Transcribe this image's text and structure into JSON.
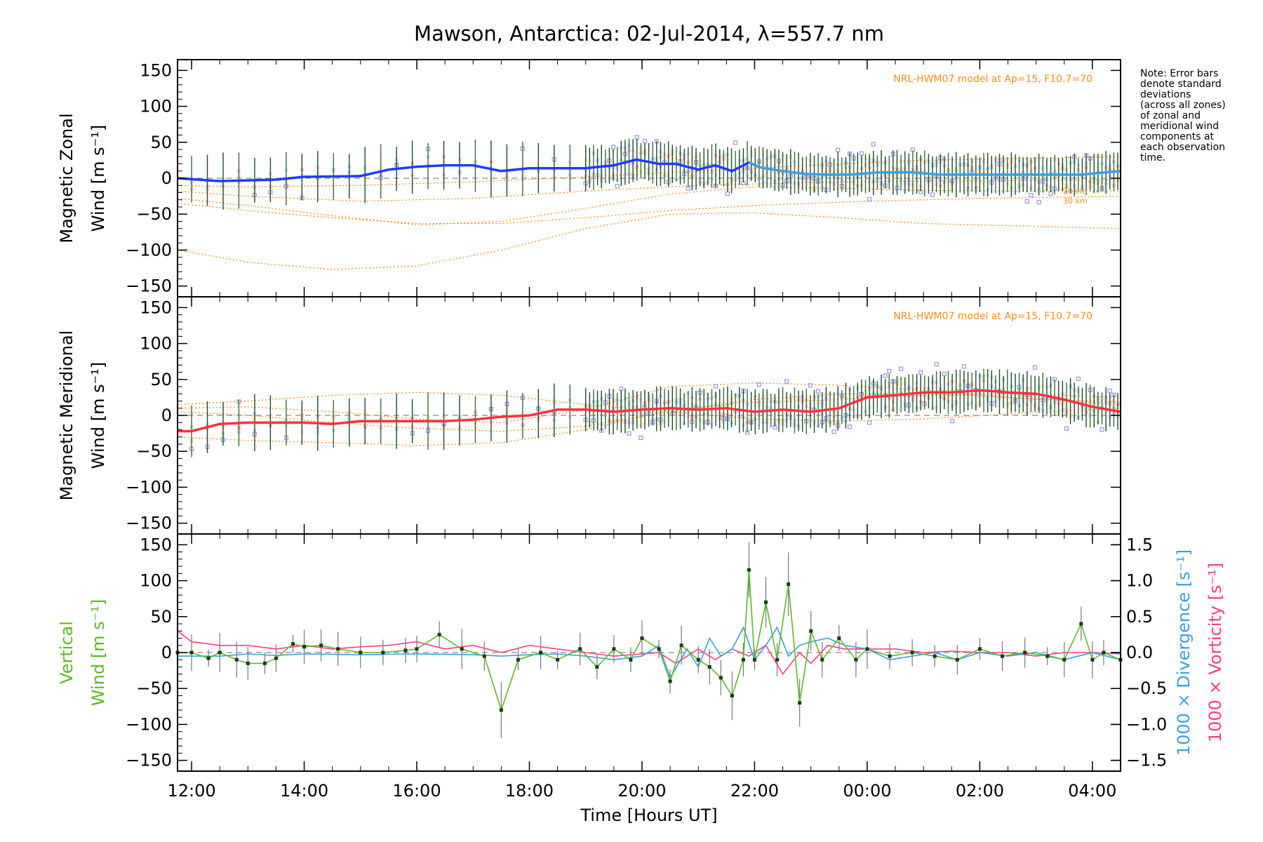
{
  "chart_data": {
    "type": "line",
    "title": "Mawson, Antarctica: 02-Jul-2014, λ=557.7 nm",
    "xlabel": "Time [Hours UT]",
    "x_range_hours_ut": [
      11.75,
      28.5
    ],
    "x_tick_hours": [
      12,
      14,
      16,
      18,
      20,
      22,
      24,
      26,
      28
    ],
    "x_tick_labels": [
      "12:00",
      "14:00",
      "16:00",
      "18:00",
      "20:00",
      "22:00",
      "00:00",
      "02:00",
      "04:00"
    ],
    "note": [
      "Note: Error bars",
      "denote standard",
      "deviations",
      "(across all zones)",
      "of zonal and",
      "meridional wind",
      "components at",
      "each observation",
      "time."
    ],
    "colors": {
      "zonal": "#1f3cff",
      "zonal_light": "#3aa0e0",
      "meridional": "#ff3040",
      "vertical": "#5fb82a",
      "divergence": "#3aa0d8",
      "vorticity": "#ff3c88",
      "model": "#ff8c1a",
      "scatter": "#9a94e0",
      "error_bar": "#1a4a2a"
    },
    "panels": [
      {
        "id": "zonal",
        "ylabel_lines": [
          "Magnetic Zonal",
          "Wind [m s⁻¹]"
        ],
        "ylim": [
          -165,
          165
        ],
        "y_ticks": [
          150,
          100,
          50,
          0,
          -50,
          -100,
          -150
        ],
        "y_tick_labels": [
          "150",
          "100",
          "50",
          "0",
          "−50",
          "−100",
          "−150"
        ],
        "model_label": "NRL-HWM07 model at Ap=15, F10.7=70",
        "model_small_labels": [
          "20 km",
          "30 km"
        ],
        "series": [
          {
            "name": "Zonal wind",
            "x": [
              11.75,
              12.5,
              13.0,
              13.5,
              14.0,
              15.0,
              15.5,
              16.0,
              16.5,
              17.0,
              17.5,
              18.0,
              18.5,
              19.0,
              19.5,
              19.9,
              20.3,
              20.6,
              21.0,
              21.3,
              21.6,
              21.9,
              22.1,
              22.5,
              22.9,
              23.3,
              23.7,
              24.2,
              24.8,
              25.3,
              26.0,
              26.6,
              27.2,
              27.8,
              28.5
            ],
            "y": [
              0,
              -4,
              -3,
              -2,
              2,
              3,
              12,
              16,
              18,
              18,
              10,
              14,
              14,
              14,
              18,
              26,
              20,
              20,
              12,
              18,
              10,
              22,
              15,
              10,
              6,
              5,
              5,
              8,
              8,
              5,
              5,
              5,
              5,
              5,
              10
            ]
          }
        ],
        "model_curves": [
          {
            "x": [
              11.75,
              13,
              14.5,
              16,
              17.5,
              19,
              20.5,
              22,
              23,
              24,
              26,
              28.5
            ],
            "y": [
              -35,
              -45,
              -55,
              -63,
              -63,
              -55,
              -45,
              -38,
              -35,
              -32,
              -28,
              -25
            ]
          },
          {
            "x": [
              11.75,
              13,
              14.5,
              16,
              17.5,
              19,
              20.5,
              22,
              23.5,
              25,
              26.5,
              28.5
            ],
            "y": [
              -100,
              -117,
              -127,
              -122,
              -100,
              -70,
              -50,
              -48,
              -55,
              -63,
              -66,
              -70
            ]
          },
          {
            "x": [
              11.75,
              13,
              14.5,
              16,
              17.5,
              19,
              20.5,
              22,
              23.5,
              25,
              26.5,
              28.5
            ],
            "y": [
              -28,
              -38,
              -52,
              -65,
              -60,
              -42,
              -22,
              -12,
              -14,
              -17,
              -18,
              -18
            ]
          },
          {
            "x": [
              11.75,
              13,
              15,
              17,
              19,
              21,
              23,
              25,
              27,
              28.5
            ],
            "y": [
              -18,
              -25,
              -32,
              -28,
              -18,
              -10,
              -6,
              -4,
              -3,
              -2
            ]
          },
          {
            "x": [
              11.75,
              13,
              15,
              17,
              19,
              21,
              23,
              25,
              27,
              28.5
            ],
            "y": [
              -10,
              -12,
              -10,
              -5,
              2,
              10,
              18,
              25,
              28,
              30
            ]
          }
        ]
      },
      {
        "id": "meridional",
        "ylabel_lines": [
          "Magnetic Meridional",
          "Wind [m s⁻¹]"
        ],
        "ylim": [
          -165,
          165
        ],
        "y_ticks": [
          150,
          100,
          50,
          0,
          -50,
          -100,
          -150
        ],
        "y_tick_labels": [
          "150",
          "100",
          "50",
          "0",
          "−50",
          "−100",
          "−150"
        ],
        "model_label": "NRL-HWM07 model at Ap=15, F10.7=70",
        "series": [
          {
            "name": "Meridional wind",
            "x": [
              11.75,
              12.0,
              12.5,
              13.0,
              13.5,
              14.0,
              14.5,
              15.0,
              15.5,
              16.0,
              16.5,
              17.0,
              17.5,
              18.0,
              18.5,
              19.0,
              19.5,
              20.0,
              20.5,
              21.0,
              21.5,
              22.0,
              22.5,
              23.0,
              23.5,
              24.0,
              24.5,
              25.0,
              25.5,
              26.0,
              26.5,
              27.0,
              27.5,
              28.0,
              28.5
            ],
            "y": [
              -22,
              -22,
              -12,
              -10,
              -10,
              -10,
              -12,
              -8,
              -8,
              -8,
              -8,
              -6,
              -2,
              0,
              8,
              8,
              5,
              8,
              10,
              8,
              10,
              5,
              8,
              5,
              10,
              25,
              28,
              32,
              32,
              35,
              32,
              30,
              22,
              12,
              5
            ]
          }
        ],
        "model_curves": [
          {
            "x": [
              11.75,
              13,
              14.5,
              16,
              17.5,
              19,
              20.5,
              22,
              23.5,
              25,
              26.5,
              28.5
            ],
            "y": [
              15,
              20,
              28,
              32,
              28,
              15,
              5,
              -5,
              -8,
              -5,
              2,
              10
            ]
          },
          {
            "x": [
              11.75,
              13,
              14.5,
              16,
              17.5,
              19,
              20.5,
              22,
              23.5,
              25,
              26.5,
              28.5
            ],
            "y": [
              -30,
              -35,
              -38,
              -42,
              -38,
              -20,
              8,
              18,
              22,
              28,
              30,
              25
            ]
          },
          {
            "x": [
              11.75,
              13,
              14.5,
              16,
              17.5,
              19,
              20.5,
              22,
              23.5,
              25,
              26.5,
              28.5
            ],
            "y": [
              5,
              0,
              -10,
              -18,
              -22,
              -15,
              5,
              22,
              30,
              30,
              25,
              18
            ]
          },
          {
            "x": [
              11.75,
              13,
              14.5,
              16,
              17.5,
              19,
              20.5,
              22,
              23.5,
              25,
              26.5,
              28.5
            ],
            "y": [
              10,
              12,
              5,
              -5,
              -10,
              8,
              40,
              45,
              42,
              35,
              25,
              15
            ]
          }
        ]
      },
      {
        "id": "vertical",
        "ylabel_lines": [
          "Vertical",
          "Wind [m s⁻¹]"
        ],
        "ylim": [
          -165,
          165
        ],
        "y_ticks": [
          150,
          100,
          50,
          0,
          -50,
          -100,
          -150
        ],
        "y_tick_labels": [
          "150",
          "100",
          "50",
          "0",
          "−50",
          "−100",
          "−150"
        ],
        "y2_label_lines": [
          "1000 × Divergence [s⁻¹]",
          "1000 × Vorticity [s⁻¹]"
        ],
        "y2lim": [
          -1.65,
          1.65
        ],
        "y2_ticks": [
          1.5,
          1.0,
          0.5,
          0.0,
          -0.5,
          -1.0,
          -1.5
        ],
        "y2_tick_labels": [
          "1.5",
          "1.0",
          "0.5",
          "0.0",
          "−0.5",
          "−1.0",
          "−1.5"
        ],
        "series": [
          {
            "name": "Vertical wind",
            "x": [
              11.75,
              12.0,
              12.3,
              12.5,
              12.8,
              13.0,
              13.3,
              13.5,
              13.8,
              14.0,
              14.3,
              14.6,
              15.0,
              15.4,
              15.8,
              16.0,
              16.4,
              16.8,
              17.2,
              17.5,
              17.8,
              18.2,
              18.5,
              18.9,
              19.2,
              19.5,
              19.8,
              20.0,
              20.3,
              20.5,
              20.7,
              21.0,
              21.2,
              21.4,
              21.6,
              21.8,
              21.9,
              22.0,
              22.2,
              22.4,
              22.6,
              22.8,
              23.0,
              23.2,
              23.5,
              23.8,
              24.0,
              24.4,
              24.8,
              25.2,
              25.6,
              26.0,
              26.4,
              26.8,
              27.2,
              27.5,
              27.8,
              28.0,
              28.2,
              28.5
            ],
            "y": [
              0,
              0,
              -8,
              0,
              -10,
              -15,
              -15,
              -8,
              12,
              8,
              10,
              5,
              0,
              0,
              3,
              5,
              25,
              5,
              -5,
              -80,
              -10,
              0,
              -10,
              5,
              -20,
              5,
              -10,
              20,
              5,
              -40,
              10,
              -10,
              -20,
              -35,
              -60,
              -10,
              115,
              -10,
              70,
              -10,
              95,
              -70,
              30,
              -10,
              20,
              -10,
              5,
              -5,
              0,
              -5,
              -10,
              5,
              -5,
              0,
              -5,
              -10,
              40,
              -10,
              0,
              -10
            ]
          },
          {
            "name": "Divergence",
            "axis": "y2",
            "x": [
              11.75,
              12.5,
              13.0,
              13.5,
              14.0,
              15.0,
              16.0,
              17.0,
              17.5,
              18.0,
              18.5,
              19.0,
              19.5,
              20.0,
              20.3,
              20.5,
              20.8,
              21.0,
              21.2,
              21.4,
              21.6,
              21.8,
              22.0,
              22.2,
              22.4,
              22.6,
              22.8,
              23.0,
              23.3,
              23.6,
              24.0,
              24.4,
              24.8,
              25.2,
              25.6,
              26.0,
              26.5,
              27.0,
              27.5,
              28.0,
              28.5
            ],
            "y": [
              -0.05,
              -0.05,
              -0.02,
              -0.04,
              -0.02,
              -0.03,
              -0.02,
              -0.03,
              -0.05,
              -0.03,
              -0.02,
              -0.05,
              -0.1,
              -0.05,
              0.1,
              -0.35,
              0.05,
              -0.2,
              0.2,
              -0.05,
              0.05,
              0.35,
              -0.1,
              0.1,
              0.35,
              -0.05,
              0.1,
              0.15,
              0.2,
              0.1,
              0.05,
              -0.1,
              -0.05,
              0,
              -0.1,
              0,
              -0.05,
              0,
              -0.1,
              0,
              -0.1
            ]
          },
          {
            "name": "Vorticity",
            "axis": "y2",
            "x": [
              11.75,
              12.0,
              12.5,
              13.0,
              13.5,
              14.0,
              14.5,
              15.0,
              15.5,
              16.0,
              16.5,
              17.0,
              17.5,
              18.0,
              18.5,
              19.0,
              19.5,
              20.0,
              20.3,
              20.6,
              21.0,
              21.3,
              21.6,
              21.9,
              22.2,
              22.5,
              22.8,
              23.0,
              23.3,
              23.6,
              24.0,
              24.5,
              25.0,
              25.5,
              26.0,
              26.5,
              27.0,
              27.5,
              28.0,
              28.5
            ],
            "y": [
              0.3,
              0.15,
              0.1,
              0.1,
              0.05,
              0.1,
              0.05,
              0.08,
              0.1,
              0.15,
              0.05,
              0.1,
              0.0,
              0.1,
              0.05,
              0.0,
              -0.05,
              -0.02,
              0.0,
              -0.15,
              0.05,
              -0.1,
              0.05,
              -0.05,
              0.1,
              -0.3,
              0.0,
              -0.15,
              0.1,
              0.05,
              0.05,
              0.05,
              0.0,
              0.02,
              0.0,
              0.0,
              -0.05,
              0.0,
              0.0,
              -0.02
            ]
          }
        ]
      }
    ]
  }
}
